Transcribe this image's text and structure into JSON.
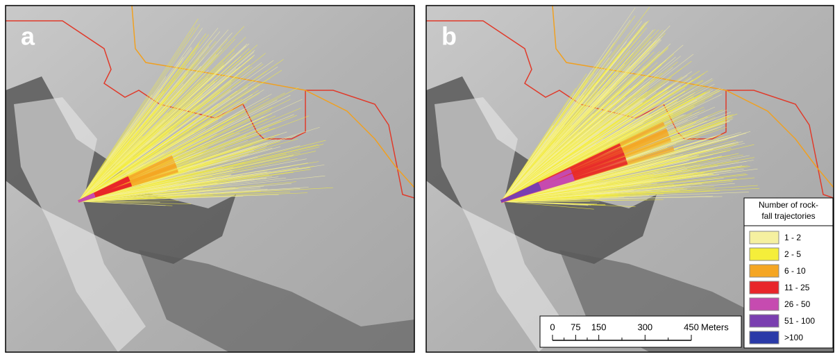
{
  "panels": [
    {
      "label": "a"
    },
    {
      "label": "b"
    }
  ],
  "legend": {
    "title_lines": [
      "Number of rock-",
      "fall trajectories"
    ],
    "items": [
      {
        "label": "1 - 2",
        "color": "#f5f0a0"
      },
      {
        "label": "2 - 5",
        "color": "#f5ee3a"
      },
      {
        "label": "6 - 10",
        "color": "#f5a623"
      },
      {
        "label": "11 - 25",
        "color": "#e8262a"
      },
      {
        "label": "26 - 50",
        "color": "#c64bb0"
      },
      {
        "label": "51 - 100",
        "color": "#7a3fb0"
      },
      {
        "label": ">100",
        "color": "#2a3aa8"
      }
    ]
  },
  "scale_bar": {
    "ticks": [
      0,
      75,
      150,
      300,
      450
    ],
    "unit": "Meters"
  }
}
